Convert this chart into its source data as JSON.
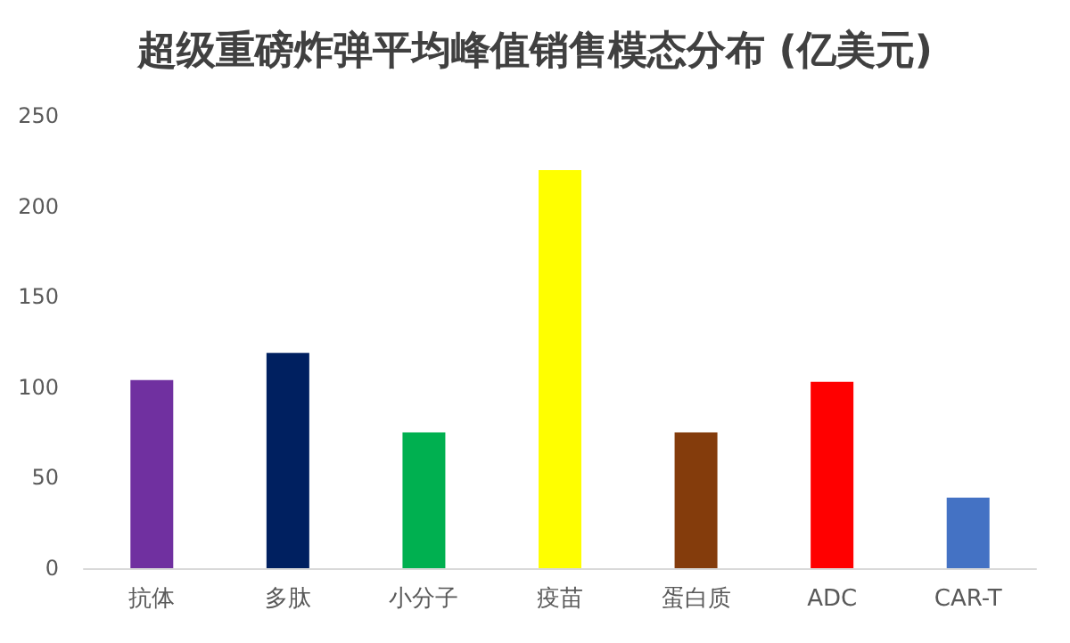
{
  "chart_data": {
    "type": "bar",
    "title": "超级重磅炸弹平均峰值销售模态分布 (亿美元)",
    "categories": [
      "抗体",
      "多肽",
      "小分子",
      "疫苗",
      "蛋白质",
      "ADC",
      "CAR-T"
    ],
    "values": [
      104,
      119,
      75,
      220,
      75,
      103,
      39
    ],
    "colors": [
      "#7030a0",
      "#002060",
      "#00b050",
      "#ffff00",
      "#843c0c",
      "#ff0000",
      "#4472c4"
    ],
    "ylim": [
      0,
      250
    ],
    "yticks": [
      0,
      50,
      100,
      150,
      200,
      250
    ],
    "grid": false
  }
}
